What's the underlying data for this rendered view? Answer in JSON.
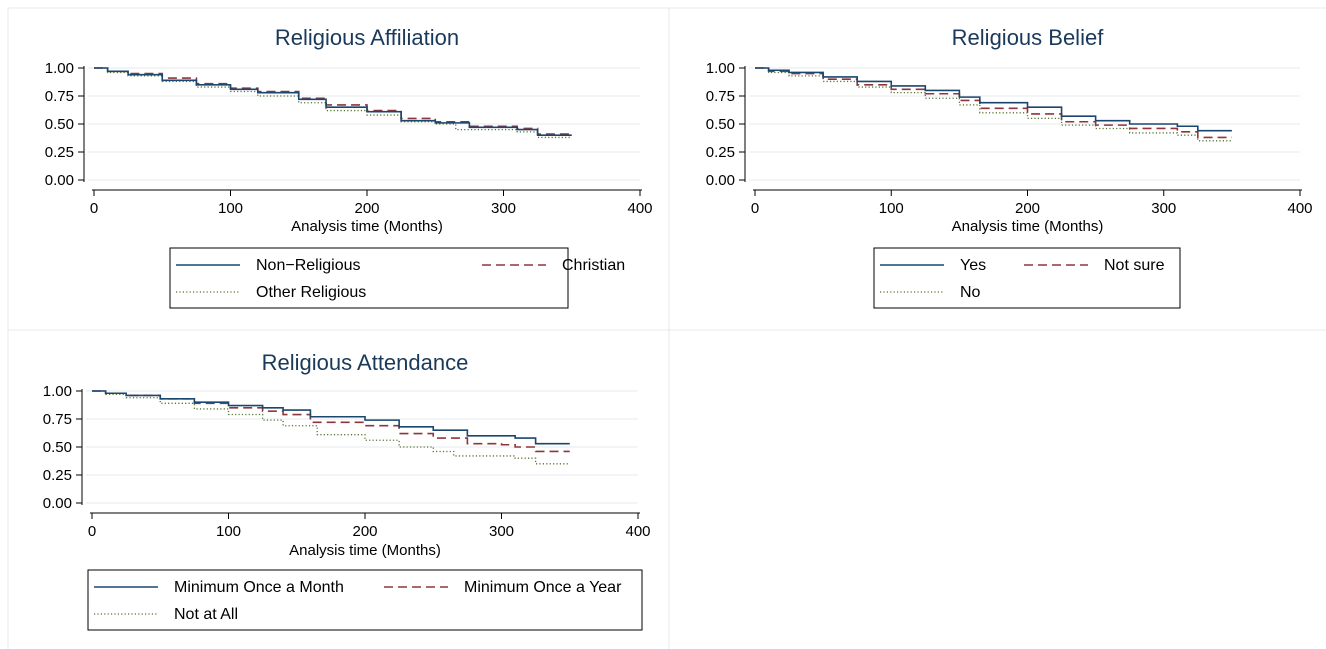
{
  "chart_data": [
    {
      "type": "line",
      "step": true,
      "title": "Religious Affiliation",
      "xlabel": "Analysis time (Months)",
      "ylabel": "",
      "xlim": [
        0,
        400
      ],
      "ylim": [
        0,
        1
      ],
      "xticks": [
        "0",
        "100",
        "200",
        "300",
        "400"
      ],
      "yticks": [
        "0.00",
        "0.25",
        "0.50",
        "0.75",
        "1.00"
      ],
      "grid": true,
      "legend": "bottom",
      "series": [
        {
          "name": "Non−Religious",
          "color": "#1a476f",
          "dash": "solid",
          "x": [
            0,
            10,
            25,
            50,
            75,
            100,
            120,
            150,
            170,
            200,
            225,
            250,
            275,
            300,
            310,
            325,
            350
          ],
          "y": [
            1.0,
            0.97,
            0.94,
            0.89,
            0.85,
            0.81,
            0.78,
            0.72,
            0.65,
            0.61,
            0.53,
            0.51,
            0.47,
            0.47,
            0.45,
            0.4,
            0.4
          ]
        },
        {
          "name": "Christian",
          "color": "#90353b",
          "dash": "dashed",
          "x": [
            0,
            10,
            25,
            50,
            75,
            100,
            120,
            150,
            170,
            200,
            225,
            250,
            275,
            300,
            310,
            325,
            350
          ],
          "y": [
            1.0,
            0.97,
            0.95,
            0.91,
            0.86,
            0.82,
            0.79,
            0.73,
            0.67,
            0.62,
            0.55,
            0.52,
            0.48,
            0.48,
            0.46,
            0.41,
            0.41
          ]
        },
        {
          "name": "Other Religious",
          "color": "#55752f",
          "dash": "dotted",
          "x": [
            0,
            10,
            25,
            50,
            75,
            100,
            120,
            150,
            170,
            200,
            225,
            250,
            265,
            300,
            310,
            325,
            350
          ],
          "y": [
            1.0,
            0.96,
            0.93,
            0.88,
            0.83,
            0.79,
            0.75,
            0.69,
            0.62,
            0.58,
            0.52,
            0.5,
            0.45,
            0.45,
            0.43,
            0.38,
            0.38
          ]
        }
      ]
    },
    {
      "type": "line",
      "step": true,
      "title": "Religious Belief",
      "xlabel": "Analysis time (Months)",
      "ylabel": "",
      "xlim": [
        0,
        400
      ],
      "ylim": [
        0,
        1
      ],
      "xticks": [
        "0",
        "100",
        "200",
        "300",
        "400"
      ],
      "yticks": [
        "0.00",
        "0.25",
        "0.50",
        "0.75",
        "1.00"
      ],
      "grid": true,
      "legend": "bottom",
      "series": [
        {
          "name": "Yes",
          "color": "#1a476f",
          "dash": "solid",
          "x": [
            0,
            10,
            25,
            50,
            75,
            100,
            125,
            150,
            165,
            200,
            225,
            250,
            275,
            300,
            310,
            325,
            350
          ],
          "y": [
            1.0,
            0.98,
            0.96,
            0.92,
            0.88,
            0.84,
            0.8,
            0.74,
            0.69,
            0.65,
            0.57,
            0.53,
            0.5,
            0.5,
            0.48,
            0.44,
            0.44
          ]
        },
        {
          "name": "Not sure",
          "color": "#90353b",
          "dash": "dashed",
          "x": [
            0,
            10,
            25,
            50,
            75,
            100,
            125,
            150,
            165,
            200,
            225,
            250,
            275,
            300,
            310,
            325,
            350
          ],
          "y": [
            1.0,
            0.97,
            0.95,
            0.9,
            0.85,
            0.81,
            0.77,
            0.71,
            0.64,
            0.59,
            0.52,
            0.49,
            0.46,
            0.46,
            0.43,
            0.38,
            0.38
          ]
        },
        {
          "name": "No",
          "color": "#55752f",
          "dash": "dotted",
          "x": [
            0,
            10,
            25,
            50,
            75,
            100,
            125,
            150,
            165,
            200,
            225,
            250,
            275,
            300,
            310,
            325,
            350
          ],
          "y": [
            1.0,
            0.96,
            0.93,
            0.88,
            0.83,
            0.78,
            0.73,
            0.67,
            0.6,
            0.55,
            0.49,
            0.46,
            0.42,
            0.42,
            0.4,
            0.35,
            0.35
          ]
        }
      ]
    },
    {
      "type": "line",
      "step": true,
      "title": "Religious Attendance",
      "xlabel": "Analysis time (Months)",
      "ylabel": "",
      "xlim": [
        0,
        400
      ],
      "ylim": [
        0,
        1
      ],
      "xticks": [
        "0",
        "100",
        "200",
        "300",
        "400"
      ],
      "yticks": [
        "0.00",
        "0.25",
        "0.50",
        "0.75",
        "1.00"
      ],
      "grid": true,
      "legend": "bottom",
      "series": [
        {
          "name": "Minimum Once a Month",
          "color": "#1a476f",
          "dash": "solid",
          "x": [
            0,
            10,
            25,
            50,
            75,
            100,
            125,
            140,
            160,
            200,
            225,
            250,
            275,
            300,
            310,
            325,
            350
          ],
          "y": [
            1.0,
            0.98,
            0.96,
            0.93,
            0.9,
            0.87,
            0.85,
            0.83,
            0.77,
            0.74,
            0.68,
            0.65,
            0.6,
            0.6,
            0.58,
            0.53,
            0.53
          ]
        },
        {
          "name": "Minimum Once a Year",
          "color": "#90353b",
          "dash": "dashed",
          "x": [
            0,
            10,
            25,
            50,
            75,
            100,
            125,
            140,
            160,
            200,
            225,
            250,
            275,
            300,
            310,
            325,
            350
          ],
          "y": [
            1.0,
            0.98,
            0.96,
            0.93,
            0.89,
            0.85,
            0.82,
            0.79,
            0.72,
            0.69,
            0.62,
            0.58,
            0.53,
            0.52,
            0.5,
            0.46,
            0.46
          ]
        },
        {
          "name": "Not at All",
          "color": "#55752f",
          "dash": "dotted",
          "x": [
            0,
            10,
            25,
            50,
            75,
            100,
            125,
            140,
            165,
            200,
            225,
            250,
            265,
            300,
            310,
            325,
            350
          ],
          "y": [
            1.0,
            0.97,
            0.94,
            0.89,
            0.84,
            0.79,
            0.74,
            0.69,
            0.61,
            0.56,
            0.5,
            0.46,
            0.42,
            0.42,
            0.4,
            0.35,
            0.35
          ]
        }
      ]
    }
  ]
}
